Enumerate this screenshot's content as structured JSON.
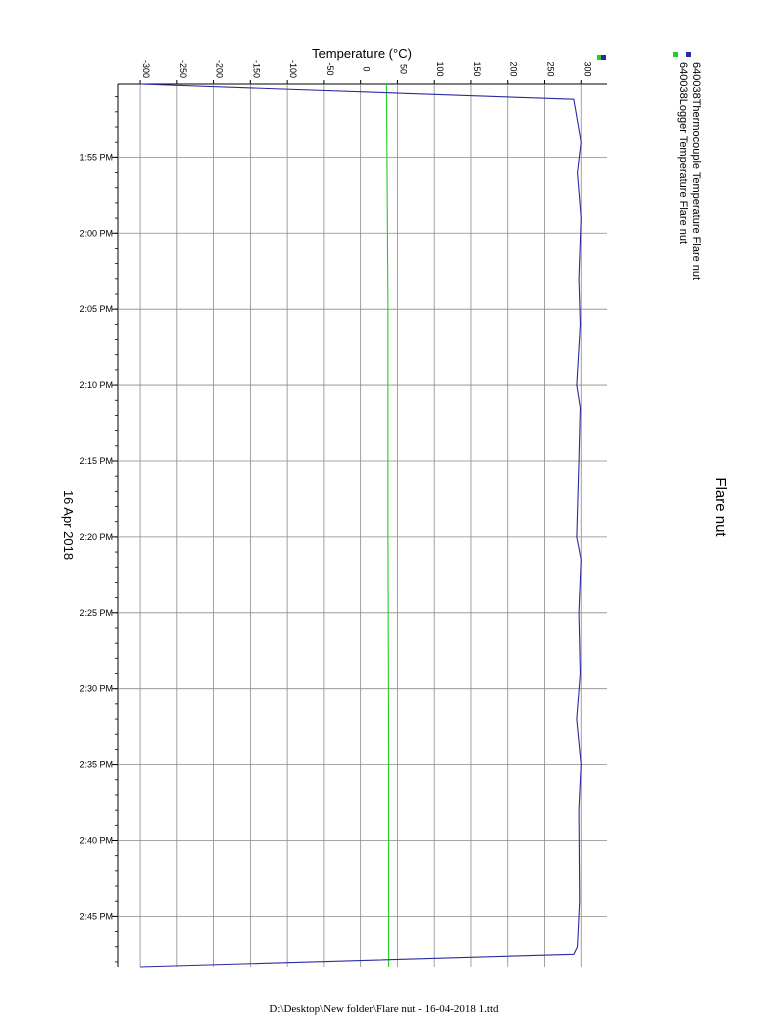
{
  "chart_data": {
    "type": "line",
    "title": "Flare nut",
    "xlabel": "Temperature (°C)",
    "x_ticks": [
      -300,
      -250,
      -200,
      -150,
      -100,
      -50,
      0,
      50,
      100,
      150,
      200,
      250,
      300
    ],
    "xlim": [
      -330,
      335
    ],
    "time_label": "16 Apr 2018",
    "time_ticks": [
      "1:55 PM",
      "2:00 PM",
      "2:05 PM",
      "2:10 PM",
      "2:15 PM",
      "2:20 PM",
      "2:25 PM",
      "2:30 PM",
      "2:35 PM",
      "2:40 PM",
      "2:45 PM"
    ],
    "tlim": [
      "1:50:10 PM",
      "2:48:20 PM"
    ],
    "grid": true,
    "legend_position": "top-right",
    "orientation": "rotated 90° clockwise (time runs downward, temperature increases to the right)",
    "series": [
      {
        "name": "640038Logger Temperature Flare nut",
        "color": "#22cc22",
        "points": [
          {
            "time": "1:50:10 PM",
            "temp": 35
          },
          {
            "time": "2:05:00 PM",
            "temp": 37
          },
          {
            "time": "2:20:00 PM",
            "temp": 37
          },
          {
            "time": "2:35:00 PM",
            "temp": 38
          },
          {
            "time": "2:48:20 PM",
            "temp": 38
          }
        ]
      },
      {
        "name": "640038Thermocouple Temperature Flare nut",
        "color": "#2a2aa0",
        "points": [
          {
            "time": "1:50:10 PM",
            "temp": -300
          },
          {
            "time": "1:51:10 PM",
            "temp": 290
          },
          {
            "time": "1:54:00 PM",
            "temp": 300
          },
          {
            "time": "1:56:00 PM",
            "temp": 295
          },
          {
            "time": "1:59:00 PM",
            "temp": 300
          },
          {
            "time": "2:03:00 PM",
            "temp": 297
          },
          {
            "time": "2:06:00 PM",
            "temp": 299
          },
          {
            "time": "2:10:00 PM",
            "temp": 294
          },
          {
            "time": "2:11:30 PM",
            "temp": 299
          },
          {
            "time": "2:15:00 PM",
            "temp": 297
          },
          {
            "time": "2:20:00 PM",
            "temp": 294
          },
          {
            "time": "2:21:30 PM",
            "temp": 300
          },
          {
            "time": "2:25:00 PM",
            "temp": 297
          },
          {
            "time": "2:29:00 PM",
            "temp": 299
          },
          {
            "time": "2:32:00 PM",
            "temp": 294
          },
          {
            "time": "2:35:00 PM",
            "temp": 300
          },
          {
            "time": "2:38:00 PM",
            "temp": 297
          },
          {
            "time": "2:44:00 PM",
            "temp": 298
          },
          {
            "time": "2:47:00 PM",
            "temp": 295
          },
          {
            "time": "2:47:30 PM",
            "temp": 290
          },
          {
            "time": "2:48:20 PM",
            "temp": -300
          }
        ]
      }
    ]
  },
  "footer": {
    "path": "D:\\Desktop\\New folder\\Flare nut - 16-04-2018 1.ttd"
  }
}
